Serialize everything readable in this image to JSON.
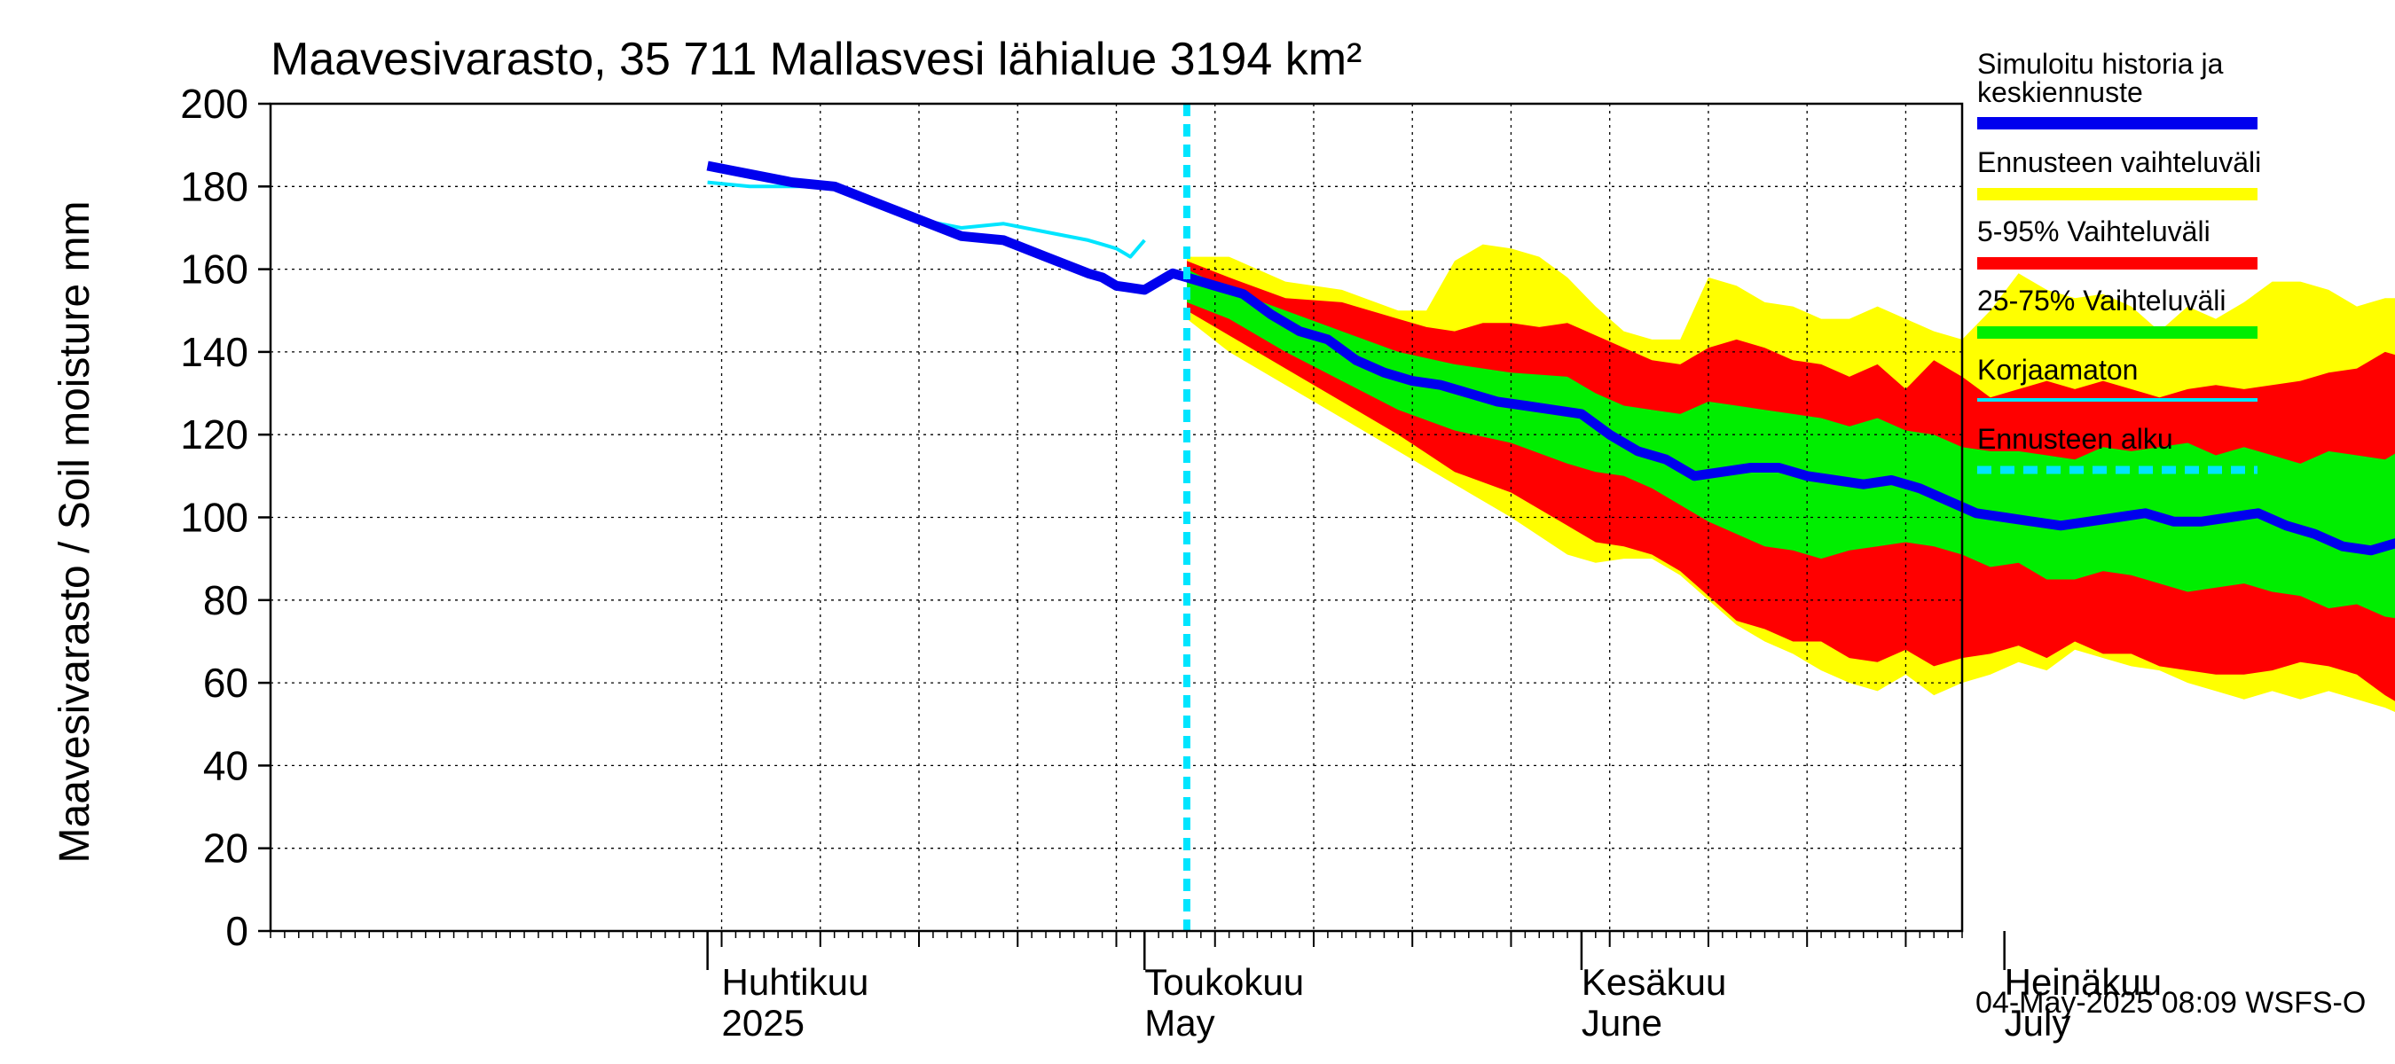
{
  "colors": {
    "band_total": "#ffff00",
    "band_5_95": "#ff0000",
    "band_25_75": "#00ee00",
    "median": "#0000ee",
    "uncorrected": "#00e5ff",
    "forecast_start": "#00e5ff",
    "grid": "#000000"
  },
  "chart_data": {
    "type": "area",
    "title": "Maavesivarasto, 35 711 Mallasvesi lähialue 3194 km²",
    "ylabel": "Maavesivarasto / Soil moisture   mm",
    "ylim": [
      0,
      200
    ],
    "y_ticks": [
      0,
      20,
      40,
      60,
      80,
      100,
      120,
      140,
      160,
      180,
      200
    ],
    "x_range_days": [
      -32,
      88
    ],
    "x_axis_origin": "2025-04-01",
    "grid": true,
    "legend_position": "right",
    "month_labels": [
      {
        "day": 0,
        "fi": "Huhtikuu",
        "en": "2025"
      },
      {
        "day": 30,
        "fi": "Toukokuu",
        "en": "May"
      },
      {
        "day": 61,
        "fi": "Kesäkuu",
        "en": "June"
      },
      {
        "day": 91,
        "fi": "Heinäkuu",
        "en": "July"
      }
    ],
    "forecast_start_day": 33,
    "legend": [
      {
        "label": "Simuloitu historia ja keskiennuste",
        "key": "median",
        "style": "thick"
      },
      {
        "label": "Ennusteen vaihteluväli",
        "key": "band_total",
        "style": "thick"
      },
      {
        "label": "5-95% Vaihteluväli",
        "key": "band_5_95",
        "style": "thick"
      },
      {
        "label": "25-75% Vaihteluväli",
        "key": "band_25_75",
        "style": "thick"
      },
      {
        "label": "Korjaamaton",
        "key": "uncorrected",
        "style": "thin"
      },
      {
        "label": "Ennusteen alku",
        "key": "forecast_start",
        "style": "dashed"
      }
    ],
    "series": [
      {
        "key": "median_history",
        "x": [
          -1,
          2,
          5,
          8,
          11,
          14,
          17,
          20,
          23,
          26,
          27,
          28,
          30,
          32,
          33
        ],
        "y": [
          185,
          183,
          181,
          180,
          176,
          172,
          168,
          167,
          163,
          159,
          158,
          156,
          155,
          159,
          158
        ]
      },
      {
        "key": "uncorrected",
        "x": [
          -1,
          2,
          5,
          8,
          11,
          14,
          17,
          20,
          23,
          26,
          27,
          28,
          29,
          30
        ],
        "y": [
          181,
          180,
          180,
          180,
          176,
          172,
          170,
          171,
          169,
          167,
          166,
          165,
          163,
          167
        ]
      },
      {
        "key": "median_forecast",
        "x": [
          33,
          35,
          37,
          39,
          41,
          43,
          45,
          47,
          49,
          51,
          53,
          55,
          57,
          59,
          61,
          63,
          65,
          67,
          69,
          71,
          73,
          75,
          77,
          79,
          81,
          83,
          85,
          87,
          89,
          91,
          93,
          95,
          97,
          99,
          101,
          103,
          105,
          107,
          109,
          111,
          113,
          115,
          117,
          119,
          120
        ],
        "y": [
          158,
          156,
          154,
          149,
          145,
          143,
          138,
          135,
          133,
          132,
          130,
          128,
          127,
          126,
          125,
          120,
          116,
          114,
          110,
          111,
          112,
          112,
          110,
          109,
          108,
          109,
          107,
          104,
          101,
          100,
          99,
          98,
          99,
          100,
          101,
          99,
          99,
          100,
          101,
          98,
          96,
          93,
          92,
          94,
          94
        ]
      },
      {
        "key": "band_total_upper",
        "x": [
          33,
          36,
          40,
          44,
          48,
          50,
          52,
          54,
          56,
          58,
          60,
          62,
          64,
          66,
          68,
          70,
          72,
          74,
          76,
          78,
          80,
          82,
          84,
          86,
          88,
          90,
          92,
          94,
          96,
          98,
          100,
          102,
          104,
          106,
          108,
          110,
          112,
          114,
          116,
          118,
          120
        ],
        "y": [
          163,
          163,
          157,
          155,
          150,
          150,
          162,
          166,
          165,
          163,
          158,
          151,
          145,
          143,
          143,
          158,
          156,
          152,
          151,
          148,
          148,
          151,
          148,
          145,
          143,
          150,
          159,
          155,
          153,
          154,
          151,
          145,
          151,
          148,
          152,
          157,
          157,
          155,
          151,
          153,
          153
        ]
      },
      {
        "key": "band_total_lower",
        "x": [
          33,
          36,
          40,
          44,
          48,
          52,
          56,
          60,
          62,
          64,
          66,
          68,
          70,
          72,
          74,
          76,
          78,
          80,
          82,
          84,
          86,
          88,
          90,
          92,
          94,
          96,
          98,
          100,
          102,
          104,
          106,
          108,
          110,
          112,
          114,
          116,
          118,
          120
        ],
        "y": [
          148,
          140,
          132,
          124,
          116,
          108,
          100,
          91,
          89,
          90,
          90,
          86,
          80,
          74,
          70,
          67,
          63,
          60,
          58,
          62,
          57,
          60,
          62,
          65,
          63,
          68,
          66,
          64,
          63,
          60,
          58,
          56,
          58,
          56,
          58,
          56,
          54,
          51
        ]
      },
      {
        "key": "band_5_95_upper",
        "x": [
          33,
          36,
          40,
          44,
          48,
          50,
          52,
          54,
          56,
          58,
          60,
          62,
          64,
          66,
          68,
          70,
          72,
          74,
          76,
          78,
          80,
          82,
          84,
          86,
          88,
          90,
          92,
          94,
          96,
          98,
          100,
          102,
          104,
          106,
          108,
          110,
          112,
          114,
          116,
          118,
          120
        ],
        "y": [
          162,
          158,
          153,
          152,
          148,
          146,
          145,
          147,
          147,
          146,
          147,
          144,
          141,
          138,
          137,
          141,
          143,
          141,
          138,
          137,
          134,
          137,
          131,
          138,
          134,
          129,
          131,
          133,
          131,
          133,
          131,
          129,
          131,
          132,
          131,
          132,
          133,
          135,
          136,
          140,
          138
        ]
      },
      {
        "key": "band_5_95_lower",
        "x": [
          33,
          36,
          40,
          44,
          48,
          52,
          56,
          60,
          62,
          64,
          66,
          68,
          70,
          72,
          74,
          76,
          78,
          80,
          82,
          84,
          86,
          88,
          90,
          92,
          94,
          96,
          98,
          100,
          102,
          104,
          106,
          108,
          110,
          112,
          114,
          116,
          118,
          120
        ],
        "y": [
          150,
          144,
          136,
          128,
          120,
          111,
          106,
          98,
          94,
          93,
          91,
          87,
          81,
          75,
          73,
          70,
          70,
          66,
          65,
          68,
          64,
          66,
          67,
          69,
          66,
          70,
          67,
          67,
          64,
          63,
          62,
          62,
          63,
          65,
          64,
          62,
          57,
          53
        ]
      },
      {
        "key": "band_25_75_upper",
        "x": [
          33,
          36,
          40,
          44,
          48,
          52,
          56,
          60,
          62,
          64,
          66,
          68,
          70,
          72,
          74,
          76,
          78,
          80,
          82,
          84,
          86,
          88,
          90,
          92,
          94,
          96,
          98,
          100,
          102,
          104,
          106,
          108,
          110,
          112,
          114,
          116,
          118,
          120
        ],
        "y": [
          160,
          155,
          150,
          145,
          140,
          137,
          135,
          134,
          130,
          127,
          126,
          125,
          128,
          127,
          126,
          125,
          124,
          122,
          124,
          121,
          120,
          117,
          116,
          116,
          115,
          114,
          117,
          116,
          117,
          118,
          115,
          117,
          115,
          113,
          116,
          115,
          114,
          118
        ]
      },
      {
        "key": "band_25_75_lower",
        "x": [
          33,
          36,
          40,
          44,
          48,
          52,
          56,
          60,
          62,
          64,
          66,
          68,
          70,
          72,
          74,
          76,
          78,
          80,
          82,
          84,
          86,
          88,
          90,
          92,
          94,
          96,
          98,
          100,
          102,
          104,
          106,
          108,
          110,
          112,
          114,
          116,
          118,
          120
        ],
        "y": [
          152,
          148,
          140,
          133,
          126,
          121,
          118,
          113,
          111,
          110,
          107,
          103,
          99,
          96,
          93,
          92,
          90,
          92,
          93,
          94,
          93,
          91,
          88,
          89,
          85,
          85,
          87,
          86,
          84,
          82,
          83,
          84,
          82,
          81,
          78,
          79,
          76,
          75
        ]
      }
    ]
  },
  "footer": {
    "timestamp": "04-May-2025 08:09 WSFS-O"
  }
}
